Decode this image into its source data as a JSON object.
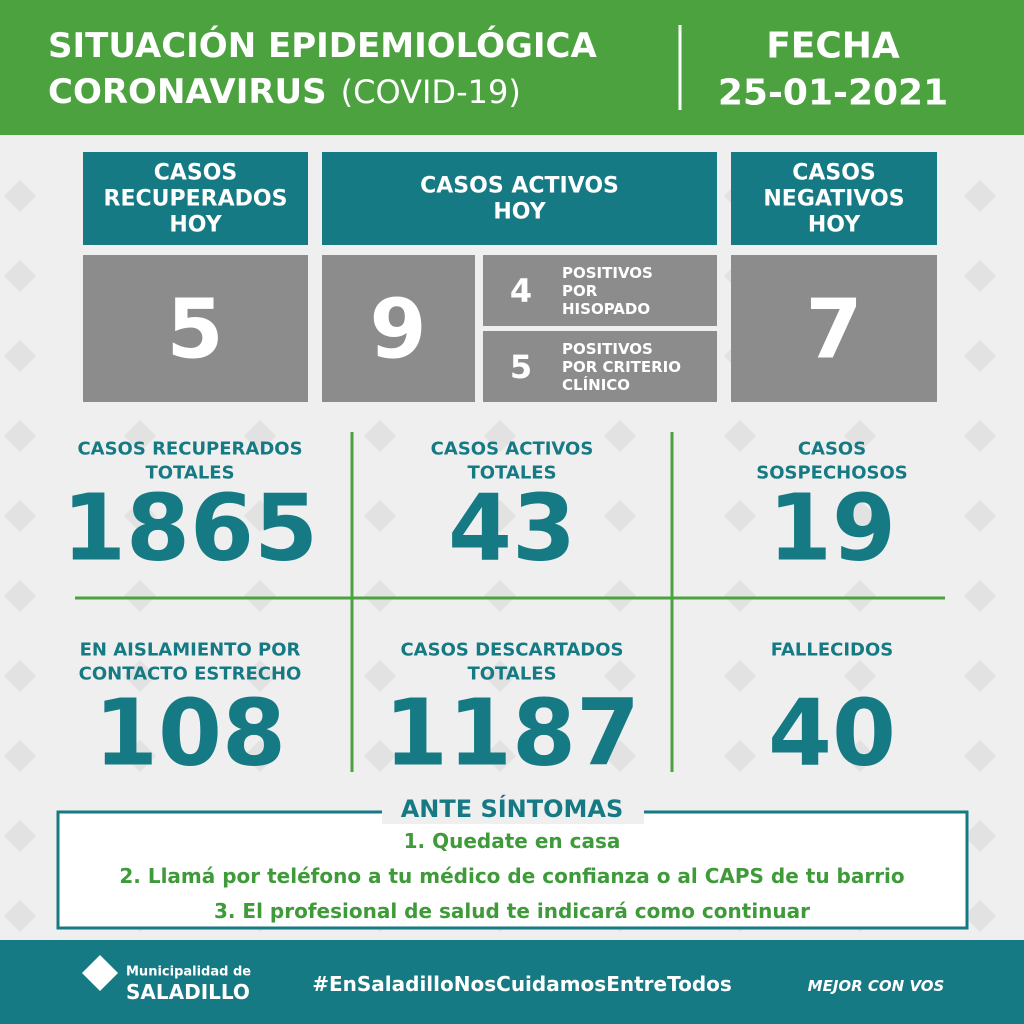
{
  "header": {
    "title_line1": "SITUACIÓN EPIDEMIOLÓGICA",
    "title_line2": "CORONAVIRUS",
    "title_suffix": "(COVID-19)",
    "date_label": "FECHA",
    "date": "25-01-2021"
  },
  "today": {
    "recovered": {
      "label": [
        "CASOS",
        "RECUPERADOS",
        "HOY"
      ],
      "value": 5
    },
    "active": {
      "label": [
        "CASOS ACTIVOS",
        "HOY"
      ],
      "value": 9,
      "breakdown": [
        {
          "value": 4,
          "label": [
            "POSITIVOS",
            "POR",
            "HISOPADO"
          ]
        },
        {
          "value": 5,
          "label": [
            "POSITIVOS",
            "POR CRITERIO",
            "CLÍNICO"
          ]
        }
      ]
    },
    "negative": {
      "label": [
        "CASOS",
        "NEGATIVOS",
        "HOY"
      ],
      "value": 7
    }
  },
  "totals": [
    {
      "label": [
        "CASOS RECUPERADOS",
        "TOTALES"
      ],
      "value": 1865
    },
    {
      "label": [
        "CASOS ACTIVOS",
        "TOTALES"
      ],
      "value": 43
    },
    {
      "label": [
        "CASOS",
        "SOSPECHOSOS"
      ],
      "value": 19
    },
    {
      "label": [
        "EN AISLAMIENTO POR",
        "CONTACTO ESTRECHO"
      ],
      "value": 108
    },
    {
      "label": [
        "CASOS DESCARTADOS",
        "TOTALES"
      ],
      "value": 1187
    },
    {
      "label": [
        "FALLECIDOS"
      ],
      "value": 40
    }
  ],
  "symptoms": {
    "title": "ANTE SÍNTOMAS",
    "items": [
      "1. Quedate en casa",
      "2. Llamá por teléfono a tu médico de confianza o al CAPS de tu barrio",
      "3. El profesional de salud te indicará como continuar"
    ]
  },
  "footer": {
    "logo_line1": "Municipalidad de",
    "logo_line2": "SALADILLO",
    "hashtag": "#EnSaladilloNosCuidamosEntreTodos",
    "slogan": "MEJOR CON VOS"
  }
}
